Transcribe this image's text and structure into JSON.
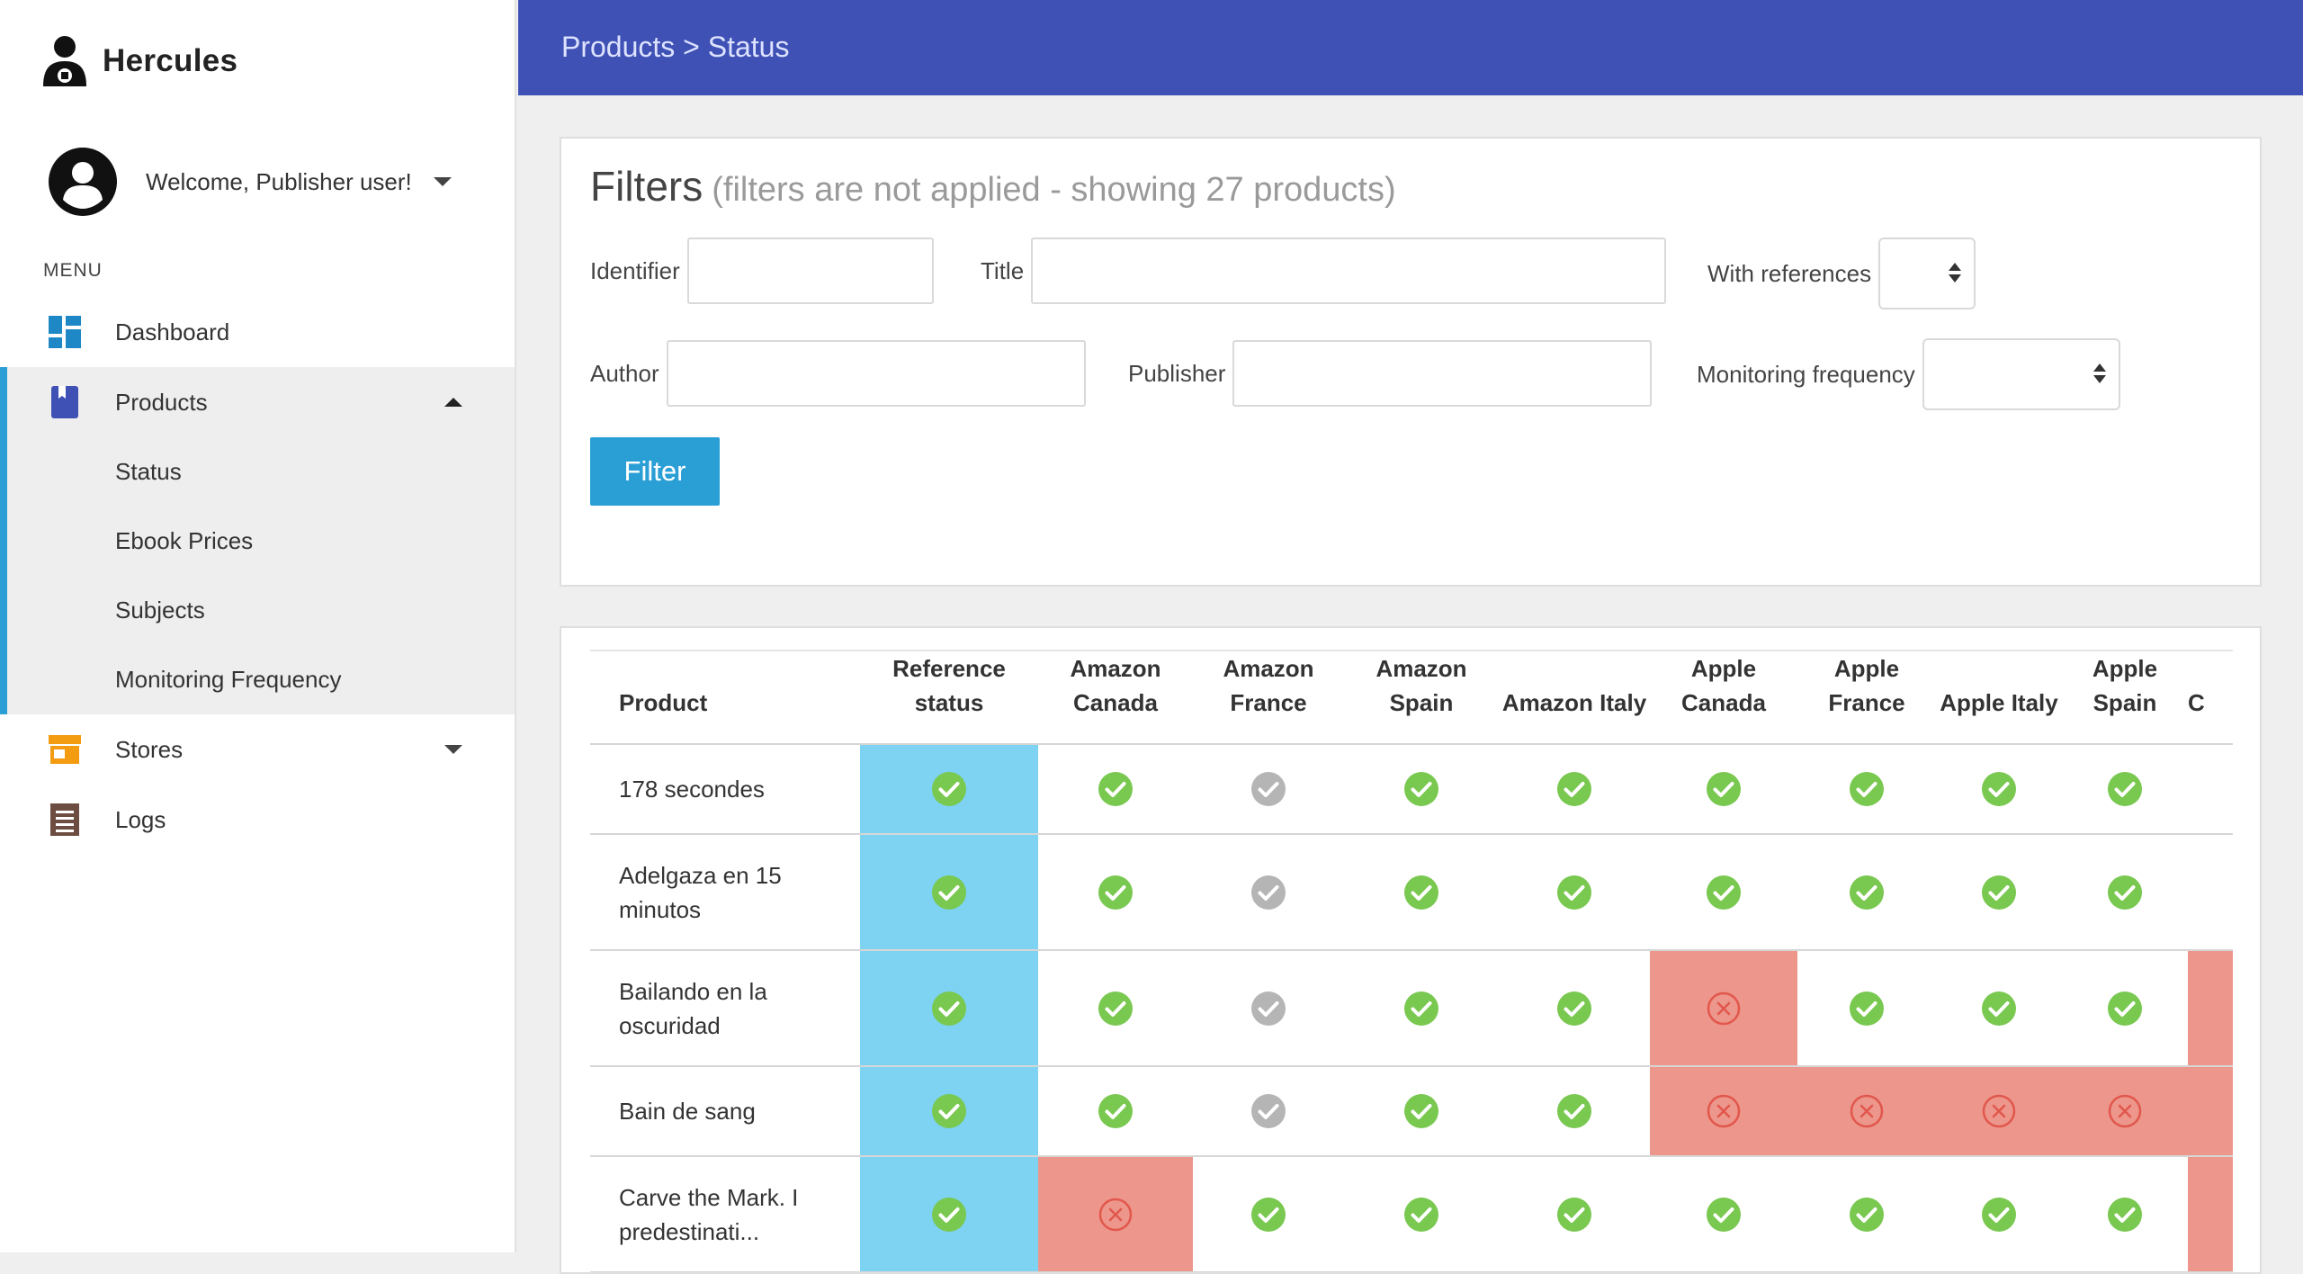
{
  "app": {
    "name": "Hercules"
  },
  "user": {
    "welcome": "Welcome, Publisher user!"
  },
  "menu": {
    "label": "MENU",
    "items": [
      {
        "label": "Dashboard",
        "icon": "dashboard-icon"
      },
      {
        "label": "Products",
        "icon": "book-icon",
        "expanded": true,
        "children": [
          "Status",
          "Ebook Prices",
          "Subjects",
          "Monitoring Frequency"
        ]
      },
      {
        "label": "Stores",
        "icon": "store-icon"
      },
      {
        "label": "Logs",
        "icon": "logs-icon"
      }
    ]
  },
  "header": {
    "breadcrumb": "Products > Status"
  },
  "filters": {
    "title": "Filters",
    "subtitle": "(filters are not applied - showing 27 products)",
    "identifier_label": "Identifier",
    "title_label": "Title",
    "with_references_label": "With references",
    "author_label": "Author",
    "publisher_label": "Publisher",
    "monitoring_frequency_label": "Monitoring frequency",
    "button_label": "Filter"
  },
  "table": {
    "columns": [
      "Product",
      "Reference status",
      "Amazon Canada",
      "Amazon France",
      "Amazon Spain",
      "Amazon Italy",
      "Apple Canada",
      "Apple France",
      "Apple Italy",
      "Apple Spain",
      "C"
    ],
    "rows": [
      {
        "product": "178 secondes",
        "status": [
          "ok",
          "ok",
          "na",
          "ok",
          "ok",
          "ok",
          "ok",
          "ok",
          "ok",
          ""
        ]
      },
      {
        "product": "Adelgaza en 15 minutos",
        "status": [
          "ok",
          "ok",
          "na",
          "ok",
          "ok",
          "ok",
          "ok",
          "ok",
          "ok",
          ""
        ]
      },
      {
        "product": "Bailando en la oscuridad",
        "status": [
          "ok",
          "ok",
          "na",
          "ok",
          "ok",
          "err",
          "ok",
          "ok",
          "ok",
          "errfill"
        ]
      },
      {
        "product": "Bain de sang",
        "status": [
          "ok",
          "ok",
          "na",
          "ok",
          "ok",
          "err",
          "err",
          "err",
          "err",
          "errfill"
        ]
      },
      {
        "product": "Carve the Mark. I predestinati...",
        "status": [
          "ok",
          "err",
          "ok",
          "ok",
          "ok",
          "ok",
          "ok",
          "ok",
          "ok",
          "errfill"
        ]
      }
    ]
  },
  "colors": {
    "header": "#3f51b5",
    "accent": "#2a9fd6",
    "reference": "#7dd3f1",
    "error_cell": "#ec968c",
    "ok": "#79c850",
    "na": "#b5b5b5",
    "error_icon": "#e2574c"
  }
}
